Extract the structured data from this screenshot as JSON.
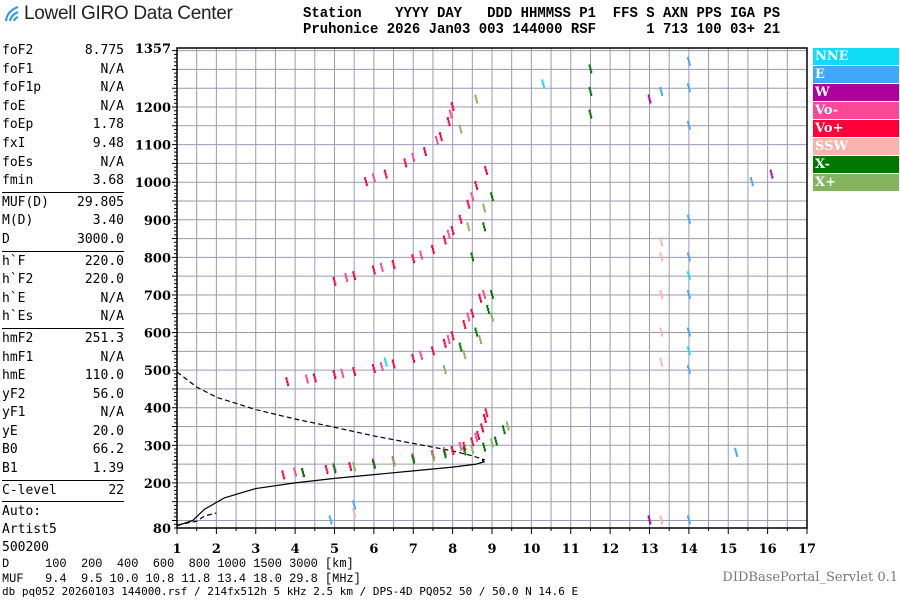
{
  "logo": {
    "text": "Lowell GIRO Data Center"
  },
  "header": {
    "line1": "Station    YYYY DAY   DDD HHMMSS P1  FFS S AXN PPS IGA PS",
    "line2": "Pruhonice 2026 Jan03 003 144000 RSF      1 713 100 03+ 21"
  },
  "params": {
    "group1": [
      [
        "foF2",
        "8.775"
      ],
      [
        "foF1",
        "N/A"
      ],
      [
        "foF1p",
        "N/A"
      ],
      [
        "foE",
        "N/A"
      ],
      [
        "foEp",
        "1.78"
      ],
      [
        "fxI",
        "9.48"
      ],
      [
        "foEs",
        "N/A"
      ],
      [
        "fmin",
        "3.68"
      ]
    ],
    "group2": [
      [
        "MUF(D)",
        "29.805"
      ],
      [
        "M(D)",
        "3.40"
      ],
      [
        "D",
        "3000.0"
      ]
    ],
    "group3": [
      [
        "h`F",
        "220.0"
      ],
      [
        "h`F2",
        "220.0"
      ],
      [
        "h`E",
        "N/A"
      ],
      [
        "h`Es",
        "N/A"
      ]
    ],
    "group4": [
      [
        "hmF2",
        "251.3"
      ],
      [
        "hmF1",
        "N/A"
      ],
      [
        "hmE",
        "110.0"
      ],
      [
        "yF2",
        "56.0"
      ],
      [
        "yF1",
        "N/A"
      ],
      [
        "yE",
        "20.0"
      ],
      [
        "B0",
        "66.2"
      ],
      [
        "B1",
        "1.39"
      ]
    ],
    "group5": [
      [
        "C-level",
        "22"
      ]
    ],
    "auto": [
      "Auto:",
      "Artist5",
      "500200"
    ]
  },
  "legend": [
    {
      "label": "NNE",
      "color": "#10dcf8"
    },
    {
      "label": "E",
      "color": "#40a8f8"
    },
    {
      "label": "W",
      "color": "#b0009c"
    },
    {
      "label": "Vo-",
      "color": "#f84898"
    },
    {
      "label": "Vo+",
      "color": "#ff0038"
    },
    {
      "label": "SSW",
      "color": "#f8b4ac"
    },
    {
      "label": "X-",
      "color": "#007800"
    },
    {
      "label": "X+",
      "color": "#84b460"
    }
  ],
  "bottom": {
    "d_line": "D     100  200  400  600  800 1000 1500 3000 [km]",
    "muf_line": "MUF   9.4  9.5 10.0 10.8 11.8 13.4 18.0 29.8 [MHz]",
    "servlet": "DIDBasePortal_Servlet 0.1",
    "footer": "db pq052 20260103 144000.rsf / 214fx512h 5 kHz 2.5 km / DPS-4D PQ052 50 / 50.0 N 14.6 E"
  },
  "chart_data": {
    "type": "scatter",
    "xlim": [
      1,
      17
    ],
    "ylim": [
      80,
      1357
    ],
    "xticks": [
      "1",
      "2",
      "3",
      "4",
      "5",
      "6",
      "7",
      "8",
      "9",
      "10",
      "11",
      "12",
      "13",
      "14",
      "15",
      "16",
      "17"
    ],
    "yticks": [
      "80",
      "200",
      "300",
      "400",
      "500",
      "600",
      "700",
      "800",
      "900",
      "1000",
      "1100",
      "1200",
      "1357"
    ],
    "grid": true,
    "legend_position": "right",
    "series": [
      {
        "name": "Vo+",
        "color": "#ff0038",
        "points": [
          [
            3.7,
            220
          ],
          [
            4.2,
            226
          ],
          [
            4.8,
            234
          ],
          [
            5.4,
            242
          ],
          [
            6,
            250
          ],
          [
            6.5,
            257
          ],
          [
            7,
            264
          ],
          [
            7.5,
            273
          ],
          [
            8,
            285
          ],
          [
            8.3,
            296
          ],
          [
            8.5,
            308
          ],
          [
            8.65,
            325
          ],
          [
            8.75,
            345
          ],
          [
            8.82,
            370
          ],
          [
            8.86,
            385
          ],
          [
            3.8,
            468
          ],
          [
            4.5,
            478
          ],
          [
            5,
            487
          ],
          [
            5.5,
            495
          ],
          [
            6,
            503
          ],
          [
            6.5,
            515
          ],
          [
            7,
            530
          ],
          [
            7.5,
            550
          ],
          [
            7.8,
            570
          ],
          [
            8,
            590
          ],
          [
            8.3,
            620
          ],
          [
            8.5,
            650
          ],
          [
            8.7,
            690
          ],
          [
            5,
            735
          ],
          [
            5.5,
            750
          ],
          [
            6,
            765
          ],
          [
            6.5,
            780
          ],
          [
            7,
            795
          ],
          [
            7.5,
            820
          ],
          [
            7.8,
            845
          ],
          [
            8,
            870
          ],
          [
            8.2,
            900
          ],
          [
            8.4,
            940
          ],
          [
            8.6,
            990
          ],
          [
            8.85,
            1030
          ],
          [
            5.8,
            1000
          ],
          [
            6.3,
            1020
          ],
          [
            6.8,
            1050
          ],
          [
            7.3,
            1080
          ],
          [
            7.7,
            1120
          ],
          [
            7.9,
            1160
          ],
          [
            8,
            1200
          ]
        ]
      },
      {
        "name": "Vo-",
        "color": "#f84898",
        "points": [
          [
            4,
            228
          ],
          [
            5,
            240
          ],
          [
            6,
            252
          ],
          [
            7,
            266
          ],
          [
            7.8,
            282
          ],
          [
            8.2,
            296
          ],
          [
            8.6,
            320
          ],
          [
            4.3,
            475
          ],
          [
            5.2,
            490
          ],
          [
            6.2,
            508
          ],
          [
            7.2,
            538
          ],
          [
            7.9,
            580
          ],
          [
            8.4,
            640
          ],
          [
            8.8,
            700
          ],
          [
            5.3,
            745
          ],
          [
            6.2,
            772
          ],
          [
            7.2,
            805
          ],
          [
            7.9,
            860
          ],
          [
            8.5,
            960
          ],
          [
            6,
            1010
          ],
          [
            7,
            1065
          ],
          [
            7.6,
            1110
          ],
          [
            7.95,
            1180
          ]
        ]
      },
      {
        "name": "X-",
        "color": "#007800",
        "points": [
          [
            4.2,
            226
          ],
          [
            5,
            236
          ],
          [
            6,
            248
          ],
          [
            7,
            262
          ],
          [
            7.8,
            276
          ],
          [
            8.3,
            284
          ],
          [
            8.8,
            294
          ],
          [
            9.1,
            310
          ],
          [
            9.3,
            340
          ],
          [
            8.2,
            560
          ],
          [
            8.6,
            600
          ],
          [
            8.9,
            660
          ],
          [
            9,
            700
          ],
          [
            8.5,
            800
          ],
          [
            8.8,
            880
          ],
          [
            9,
            960
          ],
          [
            11.5,
            1180
          ],
          [
            11.5,
            1240
          ],
          [
            11.5,
            1300
          ]
        ]
      },
      {
        "name": "X+",
        "color": "#84b460",
        "points": [
          [
            5.5,
            242
          ],
          [
            6.5,
            254
          ],
          [
            7.5,
            268
          ],
          [
            8.5,
            288
          ],
          [
            9,
            305
          ],
          [
            9.4,
            350
          ],
          [
            7.8,
            500
          ],
          [
            8.3,
            540
          ],
          [
            8.7,
            580
          ],
          [
            9,
            640
          ],
          [
            8.4,
            880
          ],
          [
            8.8,
            930
          ],
          [
            8.2,
            1140
          ],
          [
            8.6,
            1220
          ]
        ]
      },
      {
        "name": "E",
        "color": "#40a8f8",
        "points": [
          [
            14,
            500
          ],
          [
            14,
            600
          ],
          [
            14,
            700
          ],
          [
            14,
            800
          ],
          [
            14,
            900
          ],
          [
            14,
            1150
          ],
          [
            14,
            1250
          ],
          [
            14,
            1320
          ],
          [
            13.3,
            1240
          ],
          [
            4.9,
            100
          ],
          [
            5.5,
            140
          ],
          [
            14,
            100
          ],
          [
            15.2,
            280
          ],
          [
            15.6,
            1000
          ]
        ]
      },
      {
        "name": "NNE",
        "color": "#10dcf8",
        "points": [
          [
            14,
            550
          ],
          [
            14,
            750
          ],
          [
            6.3,
            520
          ],
          [
            10.3,
            1260
          ]
        ]
      },
      {
        "name": "SSW",
        "color": "#f8b4ac",
        "points": [
          [
            13.3,
            520
          ],
          [
            13.3,
            600
          ],
          [
            13.3,
            700
          ],
          [
            13.3,
            800
          ],
          [
            13.3,
            840
          ],
          [
            13.3,
            100
          ],
          [
            5.5,
            120
          ]
        ]
      },
      {
        "name": "W",
        "color": "#b0009c",
        "points": [
          [
            13,
            100
          ],
          [
            16.1,
            1020
          ],
          [
            13,
            1220
          ]
        ]
      }
    ],
    "profile_solid": [
      [
        1,
        86
      ],
      [
        1.4,
        100
      ],
      [
        1.7,
        130
      ],
      [
        2.2,
        160
      ],
      [
        3,
        185
      ],
      [
        4,
        200
      ],
      [
        5,
        212
      ],
      [
        6,
        222
      ],
      [
        7,
        232
      ],
      [
        8,
        242
      ],
      [
        8.6,
        250
      ],
      [
        8.8,
        256
      ],
      [
        8.75,
        262
      ]
    ],
    "profile_dashed": [
      [
        1,
        495
      ],
      [
        1.5,
        455
      ],
      [
        2,
        428
      ],
      [
        3,
        395
      ],
      [
        4,
        370
      ],
      [
        5,
        348
      ],
      [
        6,
        325
      ],
      [
        7,
        305
      ],
      [
        8,
        285
      ],
      [
        8.5,
        272
      ],
      [
        8.8,
        262
      ],
      [
        8.75,
        258
      ]
    ],
    "profile_dashed_low": [
      [
        1,
        88
      ],
      [
        1.5,
        98
      ],
      [
        1.7,
        112
      ],
      [
        2,
        120
      ]
    ]
  }
}
